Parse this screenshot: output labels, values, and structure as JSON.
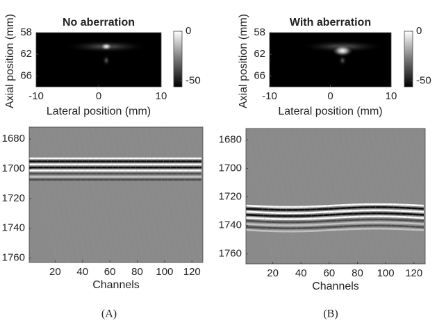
{
  "chart_data": [
    {
      "type": "image",
      "title": "No aberration",
      "xlabel": "Lateral position (mm)",
      "ylabel": "Axial position (mm)",
      "xlim": [
        -10,
        10
      ],
      "xticks": [
        -10,
        0,
        10
      ],
      "ylim": [
        58,
        68
      ],
      "yticks": [
        58,
        62,
        66
      ],
      "colorbar": {
        "lim": [
          0,
          -56
        ],
        "ticks": [
          0,
          -50
        ]
      }
    },
    {
      "type": "image",
      "title": "With aberration",
      "xlabel": "Lateral position (mm)",
      "ylabel": "Axial position (mm)",
      "xlim": [
        -10,
        10
      ],
      "xticks": [
        -10,
        0,
        10
      ],
      "ylim": [
        58,
        68
      ],
      "yticks": [
        58,
        62,
        66
      ],
      "colorbar": {
        "lim": [
          0,
          -56
        ],
        "ticks": [
          0,
          -50
        ]
      }
    },
    {
      "type": "rf",
      "xlabel": "Channels",
      "xlim": [
        1,
        128
      ],
      "xticks": [
        20,
        40,
        60,
        80,
        100,
        120
      ],
      "ylim": [
        1672,
        1763
      ],
      "yticks": [
        1680,
        1700,
        1720,
        1740,
        1760
      ]
    },
    {
      "type": "rf",
      "xlabel": "Channels",
      "xlim": [
        1,
        128
      ],
      "xticks": [
        20,
        40,
        60,
        80,
        100,
        120
      ],
      "ylim": [
        1672,
        1767
      ],
      "yticks": [
        1680,
        1700,
        1720,
        1740,
        1760
      ]
    }
  ],
  "captions": [
    "(A)",
    "(B)"
  ]
}
